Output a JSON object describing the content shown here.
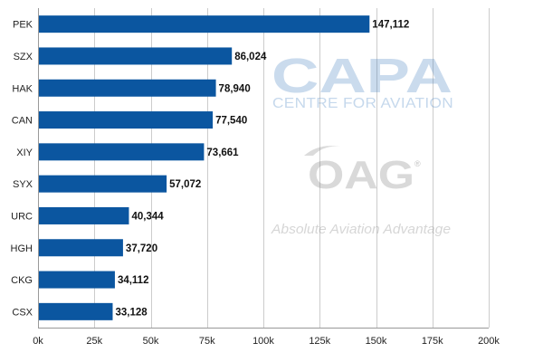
{
  "chart_data": {
    "type": "bar",
    "orientation": "horizontal",
    "categories": [
      "PEK",
      "SZX",
      "HAK",
      "CAN",
      "XIY",
      "SYX",
      "URC",
      "HGH",
      "CKG",
      "CSX"
    ],
    "values": [
      147112,
      86024,
      78940,
      77540,
      73661,
      57072,
      40344,
      37720,
      34112,
      33128
    ],
    "value_labels": [
      "147,112",
      "86,024",
      "78,940",
      "77,540",
      "73,661",
      "57,072",
      "40,344",
      "37,720",
      "34,112",
      "33,128"
    ],
    "xlim": [
      0,
      200000
    ],
    "xticks": [
      0,
      25000,
      50000,
      75000,
      100000,
      125000,
      150000,
      175000,
      200000
    ],
    "xtick_labels": [
      "0k",
      "25k",
      "50k",
      "75k",
      "100k",
      "125k",
      "150k",
      "175k",
      "200k"
    ],
    "grid": true,
    "bar_color": "#0b56a0"
  },
  "watermarks": {
    "capa": "CAPA",
    "capa_sub": "CENTRE FOR AVIATION",
    "oag": "OAG",
    "oag_tagline": "Absolute Aviation Advantage",
    "registered": "®"
  }
}
